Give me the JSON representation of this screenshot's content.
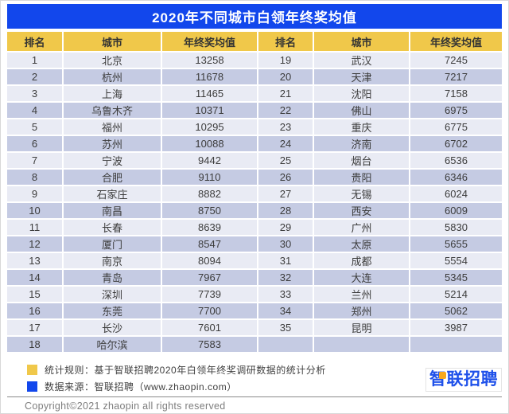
{
  "chart_data": {
    "type": "table",
    "title": "2020年不同城市白领年终奖均值",
    "columns": [
      "排名",
      "城市",
      "年终奖均值"
    ],
    "rows": [
      [
        1,
        "北京",
        13258
      ],
      [
        2,
        "杭州",
        11678
      ],
      [
        3,
        "上海",
        11465
      ],
      [
        4,
        "乌鲁木齐",
        10371
      ],
      [
        5,
        "福州",
        10295
      ],
      [
        6,
        "苏州",
        10088
      ],
      [
        7,
        "宁波",
        9442
      ],
      [
        8,
        "合肥",
        9110
      ],
      [
        9,
        "石家庄",
        8882
      ],
      [
        10,
        "南昌",
        8750
      ],
      [
        11,
        "长春",
        8639
      ],
      [
        12,
        "厦门",
        8547
      ],
      [
        13,
        "南京",
        8094
      ],
      [
        14,
        "青岛",
        7967
      ],
      [
        15,
        "深圳",
        7739
      ],
      [
        16,
        "东莞",
        7700
      ],
      [
        17,
        "长沙",
        7601
      ],
      [
        18,
        "哈尔滨",
        7583
      ],
      [
        19,
        "武汉",
        7245
      ],
      [
        20,
        "天津",
        7217
      ],
      [
        21,
        "沈阳",
        7158
      ],
      [
        22,
        "佛山",
        6975
      ],
      [
        23,
        "重庆",
        6775
      ],
      [
        24,
        "济南",
        6702
      ],
      [
        25,
        "烟台",
        6536
      ],
      [
        26,
        "贵阳",
        6346
      ],
      [
        27,
        "无锡",
        6024
      ],
      [
        28,
        "西安",
        6009
      ],
      [
        29,
        "广州",
        5830
      ],
      [
        30,
        "太原",
        5655
      ],
      [
        31,
        "成都",
        5554
      ],
      [
        32,
        "大连",
        5345
      ],
      [
        33,
        "兰州",
        5214
      ],
      [
        34,
        "郑州",
        5062
      ],
      [
        35,
        "昆明",
        3987
      ]
    ]
  },
  "table": {
    "headers": [
      "排名",
      "城市",
      "年终奖均值",
      "排名",
      "城市",
      "年终奖均值"
    ],
    "rows_per_column": 18
  },
  "legend": {
    "items": [
      {
        "swatch_color": "#F0C84A",
        "text": "统计规则：基于智联招聘2020年白领年终奖调研数据的统计分析"
      },
      {
        "swatch_color": "#1247EC",
        "text": "数据来源：智联招聘（www.zhaopin.com）"
      }
    ]
  },
  "footer": {
    "copyright": "Copyright©2021 zhaopin all rights reserved",
    "logo_text": "智联招聘"
  },
  "colors": {
    "title_bar_blue": "#1247EC",
    "header_row_yellow": "#F0C84A",
    "row_light": "#E9EBF4",
    "row_dark": "#C5CBE3",
    "logo_blue": "#1F51EA",
    "logo_orange": "#F7A81C",
    "copyright_gray": "#7d7d7d"
  }
}
